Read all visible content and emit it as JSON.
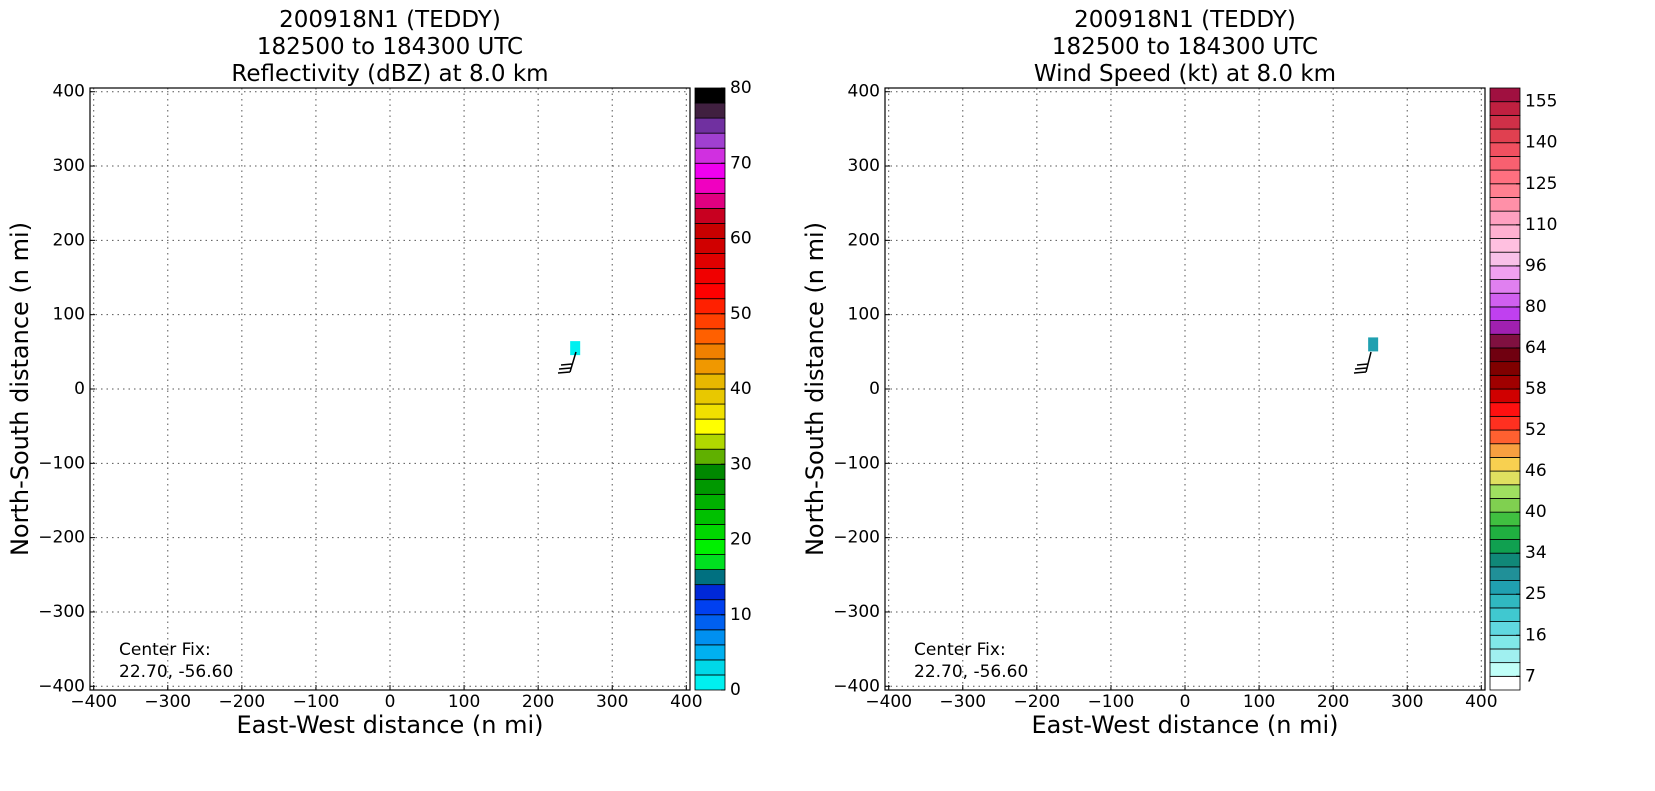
{
  "chart_data": [
    {
      "type": "heatmap",
      "title": [
        "200918N1 (TEDDY)",
        "182500 to 184300 UTC",
        "Reflectivity (dBZ) at 8.0 km"
      ],
      "xlabel": "East-West distance (n mi)",
      "ylabel": "North-South distance (n mi)",
      "xlim": [
        -405,
        405
      ],
      "ylim": [
        -405,
        405
      ],
      "xticks": [
        {
          "value": -400,
          "label": "−400"
        },
        {
          "value": -300,
          "label": "−300"
        },
        {
          "value": -200,
          "label": "−200"
        },
        {
          "value": -100,
          "label": "−100"
        },
        0,
        100,
        200,
        300,
        400
      ],
      "yticks": [
        {
          "value": -400,
          "label": "−400"
        },
        {
          "value": -300,
          "label": "−300"
        },
        {
          "value": -200,
          "label": "−200"
        },
        {
          "value": -100,
          "label": "−100"
        },
        0,
        100,
        200,
        300,
        400
      ],
      "grid": true,
      "x": [
        250
      ],
      "y": [
        55
      ],
      "values": [
        1
      ],
      "annotation": [
        "Center Fix:",
        "22.70, -56.60"
      ],
      "colorbar": {
        "bounds": [
          0,
          2,
          4,
          6,
          8,
          10,
          12,
          14,
          16,
          18,
          20,
          22,
          24,
          26,
          28,
          30,
          32,
          34,
          36,
          38,
          40,
          42,
          44,
          46,
          48,
          50,
          52,
          54,
          56,
          58,
          60,
          62,
          64,
          66,
          68,
          70,
          72,
          74,
          76,
          78,
          80
        ],
        "colors": [
          "#00f0f0",
          "#00d8e8",
          "#00b0f0",
          "#0090f0",
          "#0060f0",
          "#0040f0",
          "#0028d8",
          "#007080",
          "#00e020",
          "#00f000",
          "#00d800",
          "#00c000",
          "#00b000",
          "#009800",
          "#008800",
          "#60b000",
          "#b0d800",
          "#ffff00",
          "#f0e000",
          "#e8c800",
          "#e8b800",
          "#f09800",
          "#f08000",
          "#ff6000",
          "#ff4000",
          "#ff2000",
          "#ff0000",
          "#f00000",
          "#e00000",
          "#d00000",
          "#c80000",
          "#c80020",
          "#e00080",
          "#f000c0",
          "#f000f0",
          "#d030e0",
          "#a040d0",
          "#7030a0",
          "#402040",
          "#000000"
        ],
        "ticks": [
          0,
          10,
          20,
          30,
          40,
          50,
          60,
          70,
          80
        ]
      }
    },
    {
      "type": "heatmap",
      "title": [
        "200918N1 (TEDDY)",
        "182500 to 184300 UTC",
        "Wind Speed (kt) at 8.0 km"
      ],
      "xlabel": "East-West distance (n mi)",
      "ylabel": "North-South distance (n mi)",
      "xlim": [
        -405,
        405
      ],
      "ylim": [
        -405,
        405
      ],
      "xticks": [
        {
          "value": -400,
          "label": "−400"
        },
        {
          "value": -300,
          "label": "−300"
        },
        {
          "value": -200,
          "label": "−200"
        },
        {
          "value": -100,
          "label": "−100"
        },
        0,
        100,
        200,
        300,
        400
      ],
      "yticks": [
        {
          "value": -400,
          "label": "−400"
        },
        {
          "value": -300,
          "label": "−300"
        },
        {
          "value": -200,
          "label": "−200"
        },
        {
          "value": -100,
          "label": "−100"
        },
        0,
        100,
        200,
        300,
        400
      ],
      "grid": true,
      "x": [
        254
      ],
      "y": [
        60
      ],
      "values": [
        26
      ],
      "annotation": [
        "Center Fix:",
        "22.70, -56.60"
      ],
      "colorbar": {
        "bounds": [
          0,
          7,
          10,
          13,
          16,
          19,
          22,
          25,
          28,
          31,
          34,
          36,
          38,
          40,
          42,
          44,
          46,
          48,
          50,
          52,
          54,
          56,
          58,
          60,
          62,
          64,
          69,
          75,
          80,
          85,
          91,
          96,
          101,
          105,
          110,
          115,
          120,
          125,
          130,
          135,
          140,
          145,
          150,
          155,
          160
        ],
        "colors": [
          "#ffffff",
          "#c0fff8",
          "#a0f0f0",
          "#80e8e8",
          "#60d8e0",
          "#40c8d0",
          "#30b8c0",
          "#20a0b0",
          "#209098",
          "#108878",
          "#10a050",
          "#20b040",
          "#40c040",
          "#80d050",
          "#a0e060",
          "#e0e060",
          "#f8d050",
          "#f8a040",
          "#ff6030",
          "#ff3020",
          "#ff1010",
          "#d00000",
          "#a00000",
          "#800000",
          "#700010",
          "#801040",
          "#a020b0",
          "#c040f0",
          "#d060f0",
          "#e080f0",
          "#f0a0f0",
          "#f8c0e8",
          "#ffc0e0",
          "#ffb0d0",
          "#ffa0c0",
          "#ff90a8",
          "#ff8090",
          "#ff7080",
          "#f86070",
          "#f05060",
          "#e04050",
          "#d03048",
          "#c02040",
          "#a01040"
        ],
        "ticks": [
          7,
          16,
          25,
          34,
          40,
          46,
          52,
          58,
          64,
          80,
          96,
          110,
          125,
          140,
          155
        ]
      }
    }
  ]
}
